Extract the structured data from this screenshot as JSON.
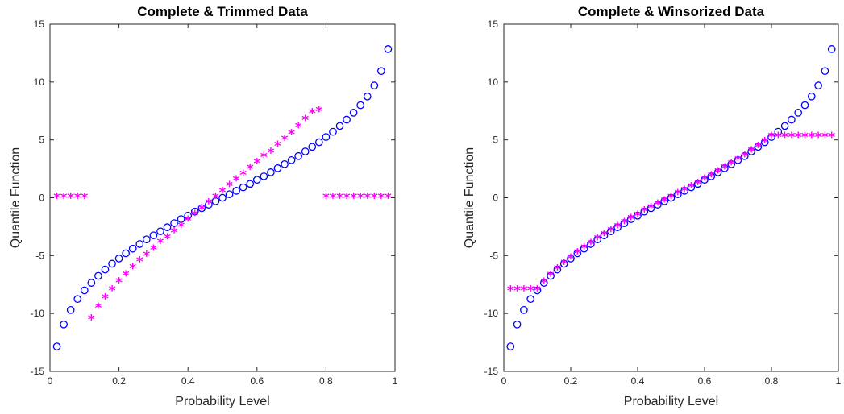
{
  "chart_data": [
    {
      "type": "scatter",
      "title": "Complete & Trimmed Data",
      "xlabel": "Probability  Level",
      "ylabel": "Quantile  Function",
      "xlim": [
        0,
        1
      ],
      "ylim": [
        -15,
        15
      ],
      "xticks": [
        0,
        0.2,
        0.4,
        0.6,
        0.8,
        1
      ],
      "yticks": [
        -15,
        -10,
        -5,
        0,
        5,
        10,
        15
      ],
      "series": [
        {
          "marker": "circle",
          "color": "#0000ff",
          "x": [
            0.02,
            0.04,
            0.06,
            0.08,
            0.1,
            0.12,
            0.14,
            0.16,
            0.18,
            0.2,
            0.22,
            0.24,
            0.26,
            0.28,
            0.3,
            0.32,
            0.34,
            0.36,
            0.38,
            0.4,
            0.42,
            0.44,
            0.46,
            0.48,
            0.5,
            0.52,
            0.54,
            0.56,
            0.58,
            0.6,
            0.62,
            0.64,
            0.66,
            0.68,
            0.7,
            0.72,
            0.74,
            0.76,
            0.78,
            0.8,
            0.82,
            0.84,
            0.86,
            0.88,
            0.9,
            0.92,
            0.94,
            0.96,
            0.98
          ],
          "y": [
            -12.85,
            -10.95,
            -9.7,
            -8.75,
            -8.0,
            -7.35,
            -6.75,
            -6.2,
            -5.7,
            -5.25,
            -4.8,
            -4.4,
            -4.0,
            -3.6,
            -3.25,
            -2.9,
            -2.55,
            -2.2,
            -1.85,
            -1.55,
            -1.2,
            -0.9,
            -0.6,
            -0.3,
            0.0,
            0.3,
            0.6,
            0.9,
            1.2,
            1.55,
            1.85,
            2.2,
            2.55,
            2.9,
            3.25,
            3.6,
            4.0,
            4.4,
            4.8,
            5.25,
            5.7,
            6.2,
            6.75,
            7.35,
            8.0,
            8.75,
            9.7,
            10.95,
            12.85
          ]
        },
        {
          "marker": "asterisk",
          "color": "#ff00ff",
          "x": [
            0.02,
            0.04,
            0.06,
            0.08,
            0.1,
            0.12,
            0.14,
            0.16,
            0.18,
            0.2,
            0.22,
            0.24,
            0.26,
            0.28,
            0.3,
            0.32,
            0.34,
            0.36,
            0.38,
            0.4,
            0.42,
            0.44,
            0.46,
            0.48,
            0.5,
            0.52,
            0.54,
            0.56,
            0.58,
            0.6,
            0.62,
            0.64,
            0.66,
            0.68,
            0.7,
            0.72,
            0.74,
            0.76,
            0.78,
            0.8,
            0.82,
            0.84,
            0.86,
            0.88,
            0.9,
            0.92,
            0.94,
            0.96,
            0.98
          ],
          "y": [
            0,
            0,
            0,
            0,
            0,
            -10.5,
            -9.5,
            -8.7,
            -8.0,
            -7.3,
            -6.7,
            -6.1,
            -5.5,
            -5.0,
            -4.5,
            -3.9,
            -3.5,
            -3.0,
            -2.5,
            -2.0,
            -1.5,
            -1.0,
            -0.5,
            0.0,
            0.5,
            1.0,
            1.5,
            2.0,
            2.5,
            3.0,
            3.5,
            3.9,
            4.5,
            5.0,
            5.5,
            6.1,
            6.7,
            7.3,
            7.5,
            0,
            0,
            0,
            0,
            0,
            0,
            0,
            0,
            0,
            0
          ]
        }
      ]
    },
    {
      "type": "scatter",
      "title": "Complete & Winsorized Data",
      "xlabel": "Probability  Level",
      "ylabel": "Quantile  Function",
      "xlim": [
        0,
        1
      ],
      "ylim": [
        -15,
        15
      ],
      "xticks": [
        0,
        0.2,
        0.4,
        0.6,
        0.8,
        1
      ],
      "yticks": [
        -15,
        -10,
        -5,
        0,
        5,
        10,
        15
      ],
      "series": [
        {
          "marker": "circle",
          "color": "#0000ff",
          "x": [
            0.02,
            0.04,
            0.06,
            0.08,
            0.1,
            0.12,
            0.14,
            0.16,
            0.18,
            0.2,
            0.22,
            0.24,
            0.26,
            0.28,
            0.3,
            0.32,
            0.34,
            0.36,
            0.38,
            0.4,
            0.42,
            0.44,
            0.46,
            0.48,
            0.5,
            0.52,
            0.54,
            0.56,
            0.58,
            0.6,
            0.62,
            0.64,
            0.66,
            0.68,
            0.7,
            0.72,
            0.74,
            0.76,
            0.78,
            0.8,
            0.82,
            0.84,
            0.86,
            0.88,
            0.9,
            0.92,
            0.94,
            0.96,
            0.98
          ],
          "y": [
            -12.85,
            -10.95,
            -9.7,
            -8.75,
            -8.0,
            -7.35,
            -6.75,
            -6.2,
            -5.7,
            -5.25,
            -4.8,
            -4.4,
            -4.0,
            -3.6,
            -3.25,
            -2.9,
            -2.55,
            -2.2,
            -1.85,
            -1.55,
            -1.2,
            -0.9,
            -0.6,
            -0.3,
            0.0,
            0.3,
            0.6,
            0.9,
            1.2,
            1.55,
            1.85,
            2.2,
            2.55,
            2.9,
            3.25,
            3.6,
            4.0,
            4.4,
            4.8,
            5.25,
            5.7,
            6.2,
            6.75,
            7.35,
            8.0,
            8.75,
            9.7,
            10.95,
            12.85
          ]
        },
        {
          "marker": "asterisk",
          "color": "#ff00ff",
          "x": [
            0.02,
            0.04,
            0.06,
            0.08,
            0.1,
            0.12,
            0.14,
            0.16,
            0.18,
            0.2,
            0.22,
            0.24,
            0.26,
            0.28,
            0.3,
            0.32,
            0.34,
            0.36,
            0.38,
            0.4,
            0.42,
            0.44,
            0.46,
            0.48,
            0.5,
            0.52,
            0.54,
            0.56,
            0.58,
            0.6,
            0.62,
            0.64,
            0.66,
            0.68,
            0.7,
            0.72,
            0.74,
            0.76,
            0.78,
            0.8,
            0.82,
            0.84,
            0.86,
            0.88,
            0.9,
            0.92,
            0.94,
            0.96,
            0.98
          ],
          "y": [
            -8.0,
            -8.0,
            -8.0,
            -8.0,
            -8.0,
            -7.35,
            -6.75,
            -6.2,
            -5.7,
            -5.25,
            -4.8,
            -4.4,
            -4.0,
            -3.6,
            -3.25,
            -2.9,
            -2.55,
            -2.2,
            -1.85,
            -1.55,
            -1.2,
            -0.9,
            -0.6,
            -0.3,
            0.0,
            0.3,
            0.6,
            0.9,
            1.2,
            1.55,
            1.85,
            2.2,
            2.55,
            2.9,
            3.25,
            3.6,
            4.0,
            4.4,
            4.8,
            5.25,
            5.25,
            5.25,
            5.25,
            5.25,
            5.25,
            5.25,
            5.25,
            5.25,
            5.25
          ]
        }
      ]
    }
  ]
}
